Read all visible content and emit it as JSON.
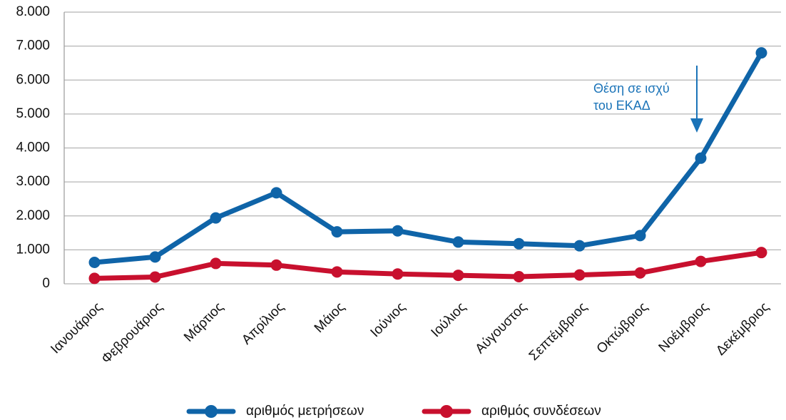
{
  "chart_data": {
    "type": "line",
    "categories": [
      "Ιανουάριος",
      "Φεβρουάριος",
      "Μάρτιος",
      "Απρίλιος",
      "Μάιος",
      "Ιούνιος",
      "Ιούλιος",
      "Αύγουστος",
      "Σεπτέμβριος",
      "Οκτώβριος",
      "Νοέμβριος",
      "Δεκέμβριος"
    ],
    "series": [
      {
        "name": "αριθμός μετρήσεων",
        "color": "#0f64a8",
        "values": [
          630,
          790,
          1940,
          2680,
          1530,
          1560,
          1230,
          1180,
          1120,
          1420,
          3700,
          6800
        ]
      },
      {
        "name": "αριθμός συνδέσεων",
        "color": "#c8102e",
        "values": [
          160,
          200,
          600,
          550,
          350,
          290,
          250,
          210,
          260,
          320,
          660,
          920
        ]
      }
    ],
    "ylim": [
      0,
      8000
    ],
    "yticks": [
      0,
      {
        "value": 1000,
        "label": "1.000"
      },
      {
        "value": 2000,
        "label": "2.000"
      },
      {
        "value": 3000,
        "label": "3.000"
      },
      {
        "value": 4000,
        "label": "4.000"
      },
      {
        "value": 5000,
        "label": "5.000"
      },
      {
        "value": 6000,
        "label": "6.000"
      },
      {
        "value": 7000,
        "label": "7.000"
      },
      {
        "value": 8000,
        "label": "8.000"
      }
    ],
    "grid": true,
    "legend": "bottom",
    "annotation": {
      "lines": [
        "Θέση σε ισχύ",
        "του ΕΚΑΔ"
      ],
      "color": "#1a73b8"
    }
  }
}
